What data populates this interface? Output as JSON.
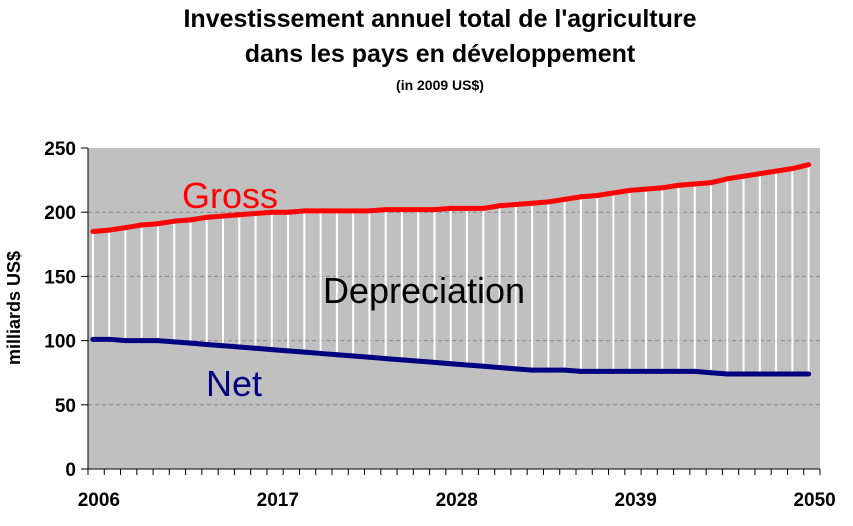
{
  "chart_data": {
    "type": "line",
    "title_line1": "Investissement annuel total de l'agriculture",
    "title_line2": "dans les pays en développement",
    "subtitle": "(in 2009 US$)",
    "ylabel": "milliards US$",
    "xlabel": "",
    "ylim": [
      0,
      250
    ],
    "yticks": [
      0,
      50,
      100,
      150,
      200,
      250
    ],
    "xtick_labels": [
      "2006",
      "2017",
      "2028",
      "2039",
      "2050"
    ],
    "x": [
      2006,
      2007,
      2008,
      2009,
      2010,
      2011,
      2012,
      2013,
      2014,
      2015,
      2016,
      2017,
      2018,
      2019,
      2020,
      2021,
      2022,
      2023,
      2024,
      2025,
      2026,
      2027,
      2028,
      2029,
      2030,
      2031,
      2032,
      2033,
      2034,
      2035,
      2036,
      2037,
      2038,
      2039,
      2040,
      2041,
      2042,
      2043,
      2044,
      2045,
      2046,
      2047,
      2048,
      2049,
      2050
    ],
    "series": [
      {
        "name": "Gross",
        "color": "#ff0000",
        "values": [
          185,
          186,
          188,
          190,
          191,
          193,
          194,
          196,
          197,
          198,
          199,
          200,
          200,
          201,
          201,
          201,
          201,
          201,
          202,
          202,
          202,
          202,
          203,
          203,
          203,
          205,
          206,
          207,
          208,
          210,
          212,
          213,
          215,
          217,
          218,
          219,
          221,
          222,
          223,
          226,
          228,
          230,
          232,
          234,
          237
        ]
      },
      {
        "name": "Net",
        "color": "#000080",
        "values": [
          101,
          101,
          100,
          100,
          100,
          99,
          98,
          97,
          96,
          95,
          94,
          93,
          92,
          91,
          90,
          89,
          88,
          87,
          86,
          85,
          84,
          83,
          82,
          81,
          80,
          79,
          78,
          77,
          77,
          77,
          76,
          76,
          76,
          76,
          76,
          76,
          76,
          76,
          75,
          74,
          74,
          74,
          74,
          74,
          74
        ]
      }
    ],
    "area_label": "Depreciation",
    "drop_line_color": "#ffffff",
    "plot_background": "#c0c0c0",
    "grid": "horizontal dashed",
    "legend": "none (inline labels)"
  }
}
